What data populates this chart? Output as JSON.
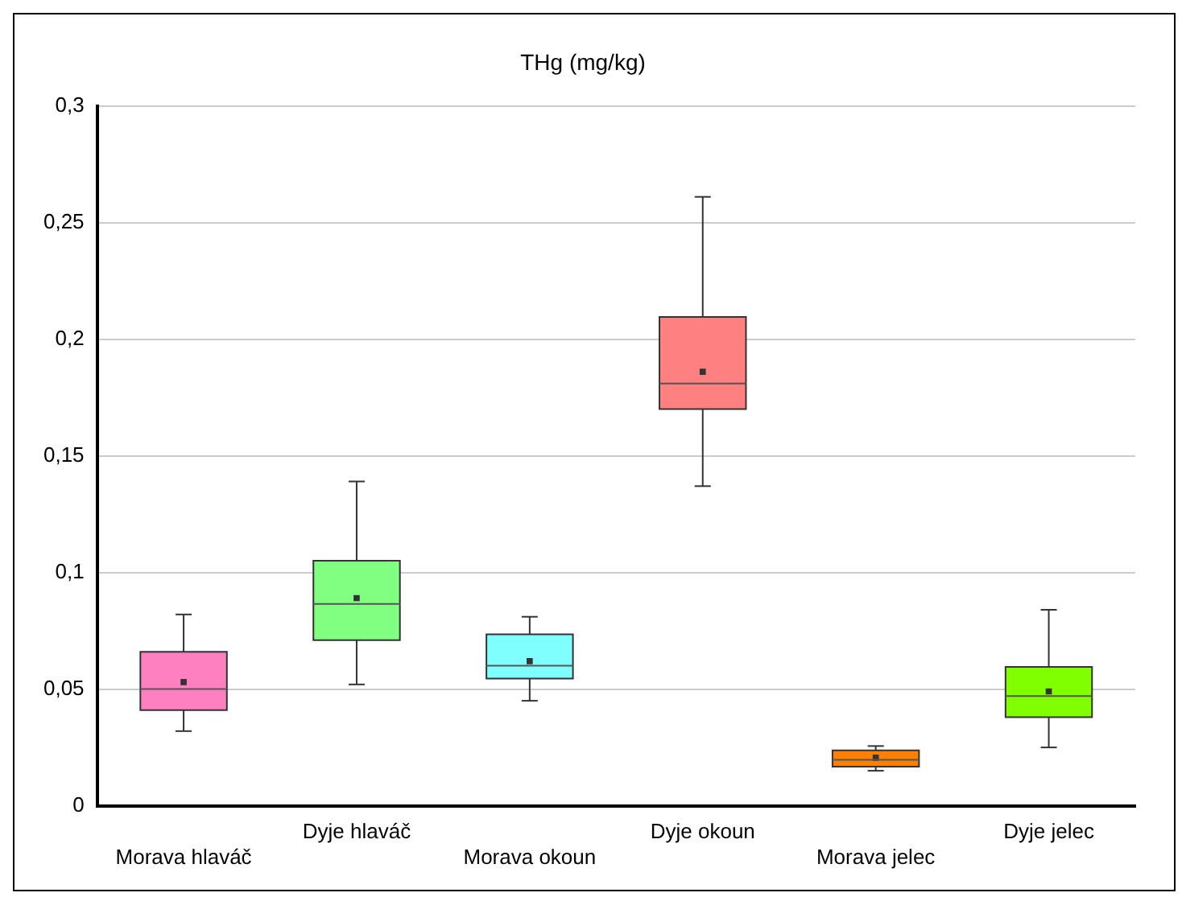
{
  "chart_data": {
    "type": "box",
    "title": "THg (mg/kg)",
    "categories": [
      "Morava hlaváč",
      "Dyje hlaváč",
      "Morava okoun",
      "Dyje okoun",
      "Morava jelec",
      "Dyje jelec"
    ],
    "colors": [
      "#ff80c0",
      "#80ff80",
      "#80ffff",
      "#ff8080",
      "#ff8000",
      "#80ff00"
    ],
    "boxes": [
      {
        "low": 0.032,
        "q1": 0.041,
        "median": 0.05,
        "q3": 0.066,
        "high": 0.082,
        "mean": 0.053
      },
      {
        "low": 0.052,
        "q1": 0.071,
        "median": 0.0865,
        "q3": 0.105,
        "high": 0.139,
        "mean": 0.089
      },
      {
        "low": 0.045,
        "q1": 0.0545,
        "median": 0.06,
        "q3": 0.0735,
        "high": 0.081,
        "mean": 0.062
      },
      {
        "low": 0.137,
        "q1": 0.17,
        "median": 0.181,
        "q3": 0.2095,
        "high": 0.261,
        "mean": 0.186
      },
      {
        "low": 0.015,
        "q1": 0.0168,
        "median": 0.0197,
        "q3": 0.0237,
        "high": 0.0256,
        "mean": 0.0206
      },
      {
        "low": 0.025,
        "q1": 0.038,
        "median": 0.047,
        "q3": 0.0595,
        "high": 0.084,
        "mean": 0.049
      }
    ],
    "ylim": [
      0,
      0.3
    ],
    "yticks": [
      {
        "value": 0,
        "label": "0"
      },
      {
        "value": 0.05,
        "label": "0,05"
      },
      {
        "value": 0.1,
        "label": "0,1"
      },
      {
        "value": 0.15,
        "label": "0,15"
      },
      {
        "value": 0.2,
        "label": "0,2"
      },
      {
        "value": 0.25,
        "label": "0,25"
      },
      {
        "value": 0.3,
        "label": "0,3"
      }
    ],
    "grid": "y",
    "legend": false
  }
}
